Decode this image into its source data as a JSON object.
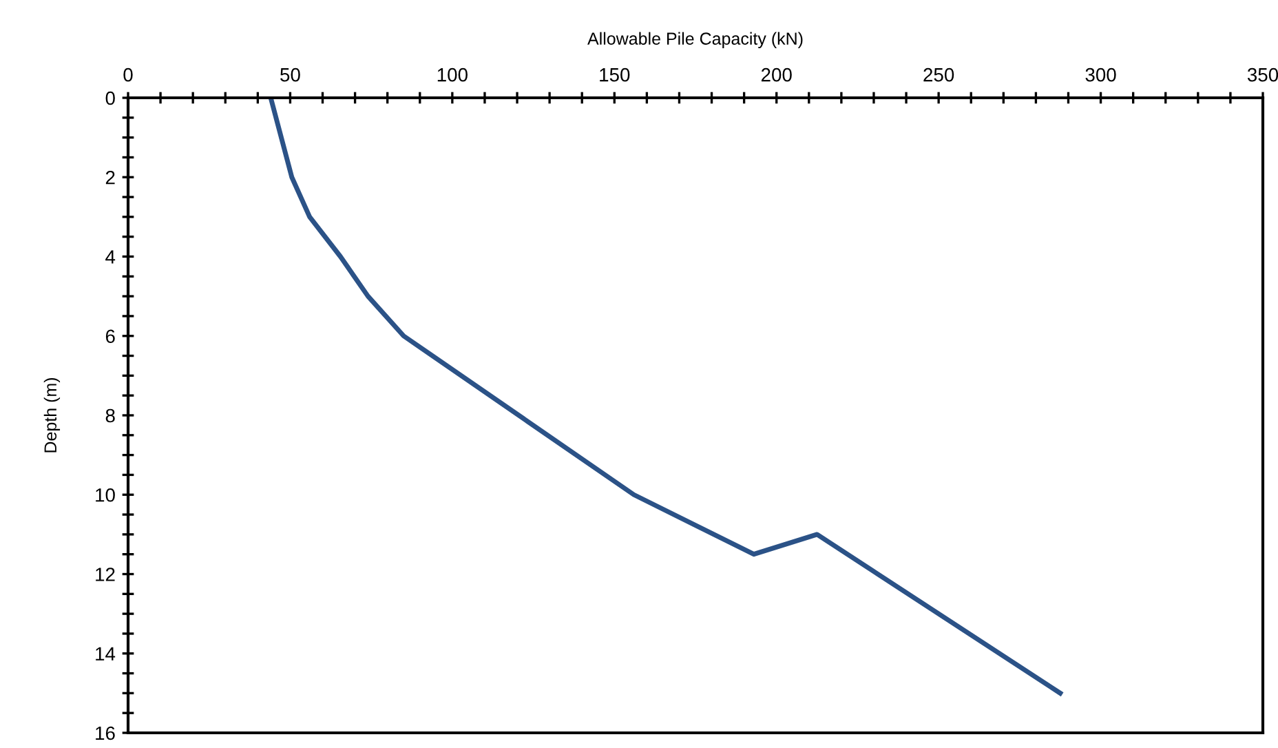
{
  "chart_data": {
    "type": "line",
    "xlabel": "Allowable Pile Capacity (kN)",
    "ylabel": "Depth (m)",
    "xlim": [
      0,
      350
    ],
    "ylim": [
      16,
      0
    ],
    "xticks": [
      0,
      {
        "value": 10,
        "label": null
      },
      {
        "value": 20,
        "label": null
      },
      {
        "value": 30,
        "label": null
      },
      {
        "value": 40,
        "label": null
      },
      50,
      {
        "value": 60,
        "label": null
      },
      {
        "value": 70,
        "label": null
      },
      {
        "value": 80,
        "label": null
      },
      {
        "value": 90,
        "label": null
      },
      100,
      {
        "value": 110,
        "label": null
      },
      {
        "value": 120,
        "label": null
      },
      {
        "value": 130,
        "label": null
      },
      {
        "value": 140,
        "label": null
      },
      150,
      {
        "value": 160,
        "label": null
      },
      {
        "value": 170,
        "label": null
      },
      {
        "value": 180,
        "label": null
      },
      {
        "value": 190,
        "label": null
      },
      200,
      {
        "value": 210,
        "label": null
      },
      {
        "value": 220,
        "label": null
      },
      {
        "value": 230,
        "label": null
      },
      {
        "value": 240,
        "label": null
      },
      250,
      {
        "value": 260,
        "label": null
      },
      {
        "value": 270,
        "label": null
      },
      {
        "value": 280,
        "label": null
      },
      {
        "value": 290,
        "label": null
      },
      300,
      {
        "value": 310,
        "label": null
      },
      {
        "value": 320,
        "label": null
      },
      {
        "value": 330,
        "label": null
      },
      {
        "value": 340,
        "label": null
      },
      350
    ],
    "yticks": [
      0,
      {
        "value": 0.5,
        "label": null
      },
      {
        "value": 1,
        "label": null
      },
      {
        "value": 1.5,
        "label": null
      },
      2,
      {
        "value": 2.5,
        "label": null
      },
      {
        "value": 3,
        "label": null
      },
      {
        "value": 3.5,
        "label": null
      },
      4,
      {
        "value": 4.5,
        "label": null
      },
      {
        "value": 5,
        "label": null
      },
      {
        "value": 5.5,
        "label": null
      },
      6,
      {
        "value": 6.5,
        "label": null
      },
      {
        "value": 7,
        "label": null
      },
      {
        "value": 7.5,
        "label": null
      },
      8,
      {
        "value": 8.5,
        "label": null
      },
      {
        "value": 9,
        "label": null
      },
      {
        "value": 9.5,
        "label": null
      },
      10,
      {
        "value": 10.5,
        "label": null
      },
      {
        "value": 11,
        "label": null
      },
      {
        "value": 11.5,
        "label": null
      },
      12,
      {
        "value": 12.5,
        "label": null
      },
      {
        "value": 13,
        "label": null
      },
      {
        "value": 13.5,
        "label": null
      },
      14,
      {
        "value": 14.5,
        "label": null
      },
      {
        "value": 15,
        "label": null
      },
      {
        "value": 15.5,
        "label": null
      },
      16
    ],
    "grid": false,
    "marker": "none",
    "line_style": "solid",
    "series": [
      {
        "color": "#2b5287",
        "x": [
          44,
          50.5,
          56,
          65.5,
          74,
          85,
          156,
          193,
          212.5,
          287.5
        ],
        "values": [
          0,
          2,
          3,
          4,
          5,
          6,
          10,
          11.5,
          11,
          15
        ]
      }
    ]
  }
}
